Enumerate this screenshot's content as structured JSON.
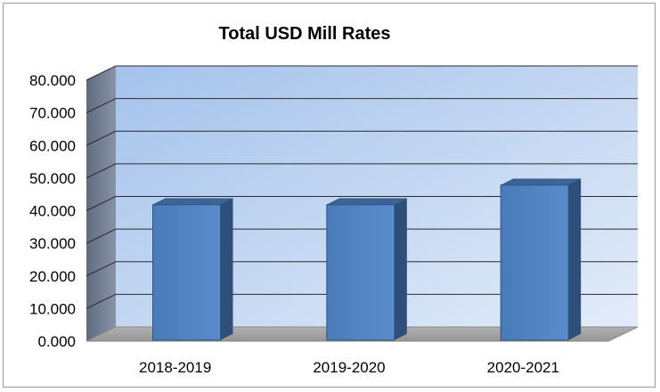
{
  "chart_data": {
    "type": "bar",
    "title": "Total USD Mill Rates",
    "categories": [
      "2018-2019",
      "2019-2020",
      "2020-2021"
    ],
    "values": [
      41.5,
      41.5,
      47.5
    ],
    "xlabel": "",
    "ylabel": "",
    "ylim": [
      0,
      80
    ],
    "yticks": [
      "0.000",
      "10.000",
      "20.000",
      "30.000",
      "40.000",
      "50.000",
      "60.000",
      "70.000",
      "80.000"
    ],
    "grid": true,
    "legend": "none",
    "colors": {
      "bar_front": "#4f81bd",
      "bar_side": "#2d4f7a",
      "bar_top": "#3c6497",
      "wall_light": "#d9e6f7",
      "wall_dark": "#a4c2ec",
      "side_wall": "#6f7c91",
      "floor": "#a6a6a6"
    }
  }
}
